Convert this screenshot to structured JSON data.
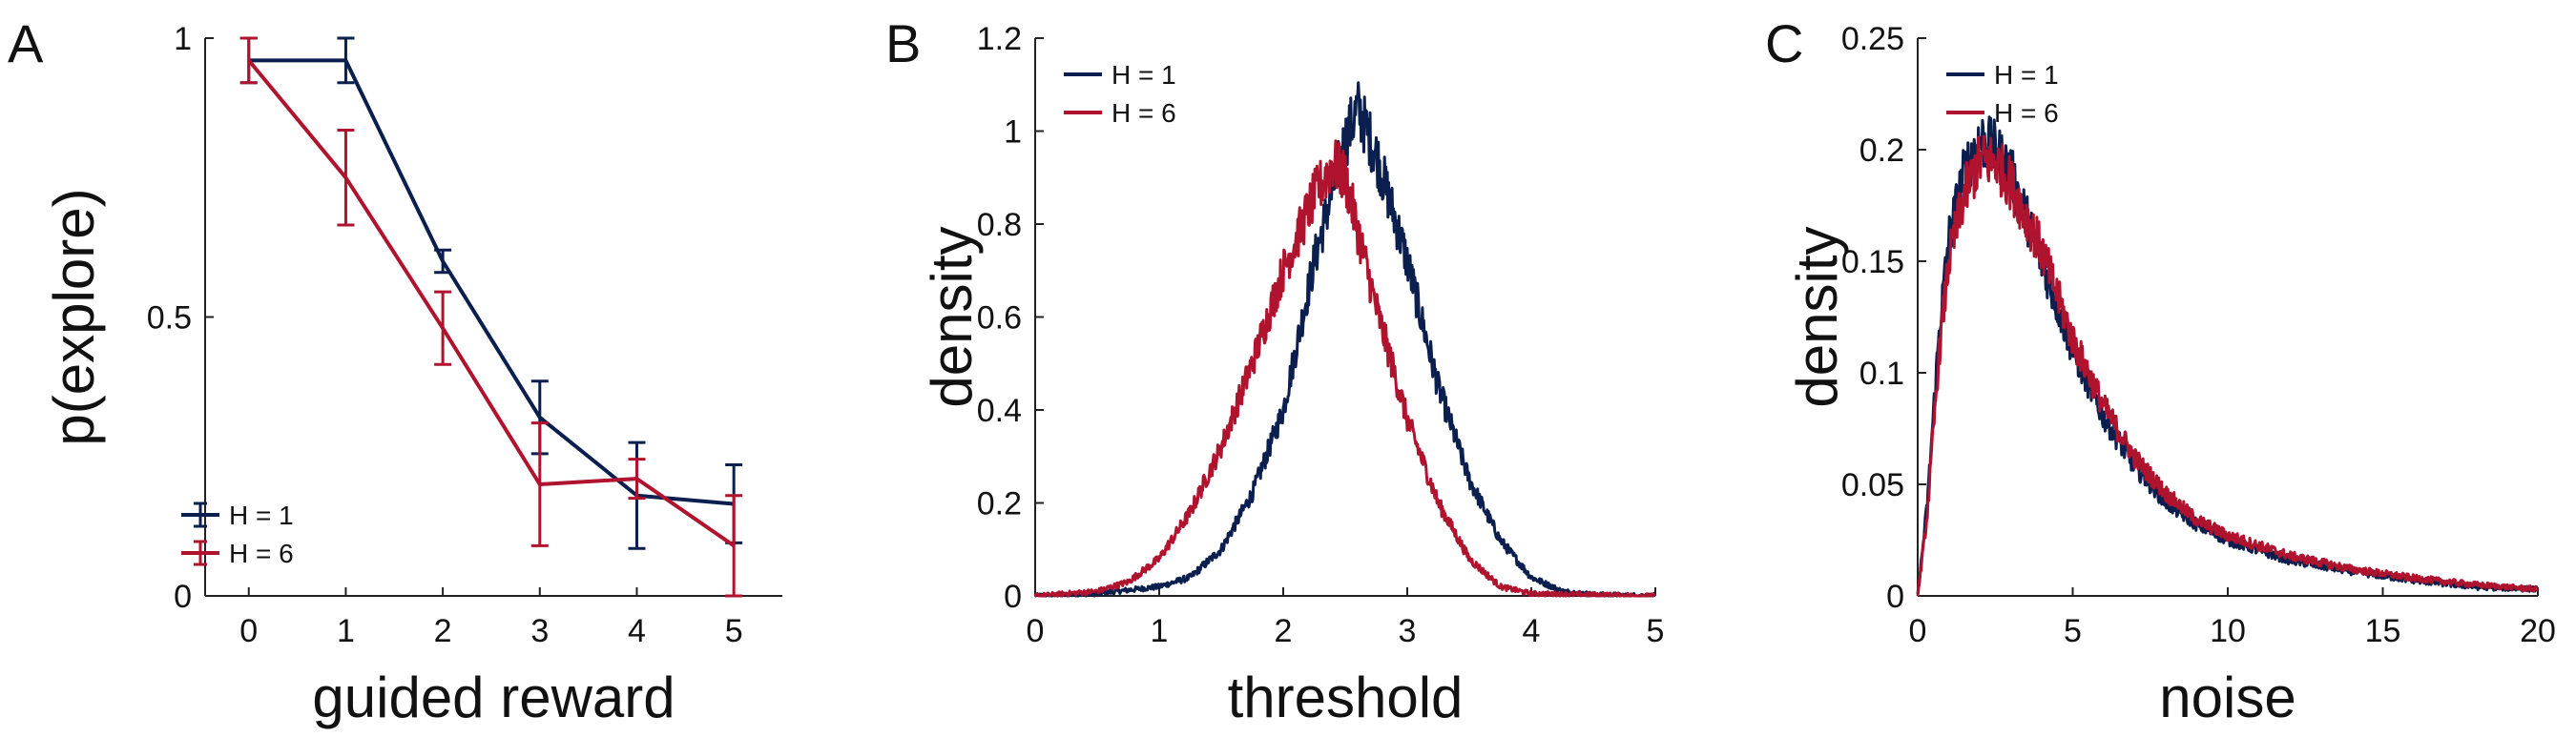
{
  "colors": {
    "h1": "#0b1f4e",
    "h6": "#b0132e",
    "axis": "#222222"
  },
  "chart_data": [
    {
      "type": "line",
      "panel_label": "A",
      "xlabel": "guided reward",
      "ylabel": "p(explore)",
      "xlim": [
        -0.45,
        5.5
      ],
      "ylim": [
        0,
        1
      ],
      "xticks": [
        0,
        1,
        2,
        3,
        4,
        5
      ],
      "yticks": [
        0,
        0.5,
        1
      ],
      "ytick_labels": [
        "0",
        "0.5",
        "1"
      ],
      "grid": false,
      "legend_position": "bottom-left",
      "x": [
        0,
        1,
        2,
        3,
        4,
        5
      ],
      "series": [
        {
          "name": "H = 1",
          "color": "#0b1f4e",
          "values": [
            0.96,
            0.96,
            0.6,
            0.32,
            0.18,
            0.165
          ],
          "errors": [
            0.04,
            0.04,
            0.02,
            0.065,
            0.095,
            0.07
          ]
        },
        {
          "name": "H = 6",
          "color": "#b0132e",
          "values": [
            0.96,
            0.75,
            0.48,
            0.2,
            0.21,
            0.09
          ],
          "errors": [
            0.04,
            0.085,
            0.065,
            0.11,
            0.035,
            0.09
          ]
        }
      ]
    },
    {
      "type": "line",
      "panel_label": "B",
      "xlabel": "threshold",
      "ylabel": "density",
      "xlim": [
        0,
        5
      ],
      "ylim": [
        0,
        1.2
      ],
      "xticks": [
        0,
        1,
        2,
        3,
        4,
        5
      ],
      "yticks": [
        0,
        0.2,
        0.4,
        0.6,
        0.8,
        1,
        1.2
      ],
      "ytick_labels": [
        "0",
        "0.2",
        "0.4",
        "0.6",
        "0.8",
        "1",
        "1.2"
      ],
      "grid": false,
      "legend_position": "top-left",
      "series": [
        {
          "name": "H = 1",
          "color": "#0b1f4e",
          "x": [
            0,
            0.5,
            1.0,
            1.25,
            1.5,
            1.75,
            2.0,
            2.25,
            2.5,
            2.6,
            2.75,
            3.0,
            3.25,
            3.5,
            3.75,
            4.0,
            4.25,
            4.5,
            5.0
          ],
          "values": [
            0.0,
            0.005,
            0.02,
            0.04,
            0.1,
            0.22,
            0.4,
            0.72,
            0.98,
            1.05,
            0.95,
            0.72,
            0.45,
            0.25,
            0.12,
            0.04,
            0.01,
            0.003,
            0.0
          ]
        },
        {
          "name": "H = 6",
          "color": "#b0132e",
          "x": [
            0,
            0.5,
            0.75,
            1.0,
            1.25,
            1.5,
            1.75,
            2.0,
            2.25,
            2.4,
            2.5,
            2.75,
            3.0,
            3.25,
            3.5,
            3.75,
            4.0,
            5.0
          ],
          "values": [
            0.0,
            0.01,
            0.03,
            0.08,
            0.18,
            0.32,
            0.5,
            0.7,
            0.86,
            0.93,
            0.9,
            0.62,
            0.38,
            0.2,
            0.08,
            0.02,
            0.005,
            0.0
          ]
        }
      ]
    },
    {
      "type": "line",
      "panel_label": "C",
      "xlabel": "noise",
      "ylabel": "density",
      "xlim": [
        0,
        20
      ],
      "ylim": [
        0,
        0.25
      ],
      "xticks": [
        0,
        5,
        10,
        15,
        20
      ],
      "yticks": [
        0,
        0.05,
        0.1,
        0.15,
        0.2,
        0.25
      ],
      "ytick_labels": [
        "0",
        "0.05",
        "0.1",
        "0.15",
        "0.2",
        "0.25"
      ],
      "grid": false,
      "legend_position": "top-left",
      "series": [
        {
          "name": "H = 1",
          "color": "#0b1f4e",
          "x": [
            0,
            0.3,
            0.7,
            1.0,
            1.5,
            2.0,
            2.5,
            3.0,
            3.5,
            4.0,
            5.0,
            6.0,
            7.0,
            8.0,
            9.0,
            10.0,
            12.0,
            14.0,
            16.0,
            18.0,
            20.0
          ],
          "values": [
            0.0,
            0.04,
            0.12,
            0.16,
            0.19,
            0.205,
            0.2,
            0.19,
            0.17,
            0.15,
            0.11,
            0.08,
            0.058,
            0.042,
            0.032,
            0.025,
            0.016,
            0.011,
            0.007,
            0.004,
            0.003
          ]
        },
        {
          "name": "H = 6",
          "color": "#b0132e",
          "x": [
            0,
            0.3,
            0.7,
            1.0,
            1.5,
            2.0,
            2.5,
            3.0,
            3.5,
            4.0,
            5.0,
            6.0,
            7.0,
            8.0,
            9.0,
            10.0,
            12.0,
            14.0,
            16.0,
            18.0,
            20.0
          ],
          "values": [
            0.0,
            0.035,
            0.11,
            0.15,
            0.18,
            0.195,
            0.195,
            0.185,
            0.17,
            0.155,
            0.115,
            0.085,
            0.062,
            0.046,
            0.034,
            0.027,
            0.018,
            0.012,
            0.008,
            0.005,
            0.003
          ]
        }
      ]
    }
  ]
}
